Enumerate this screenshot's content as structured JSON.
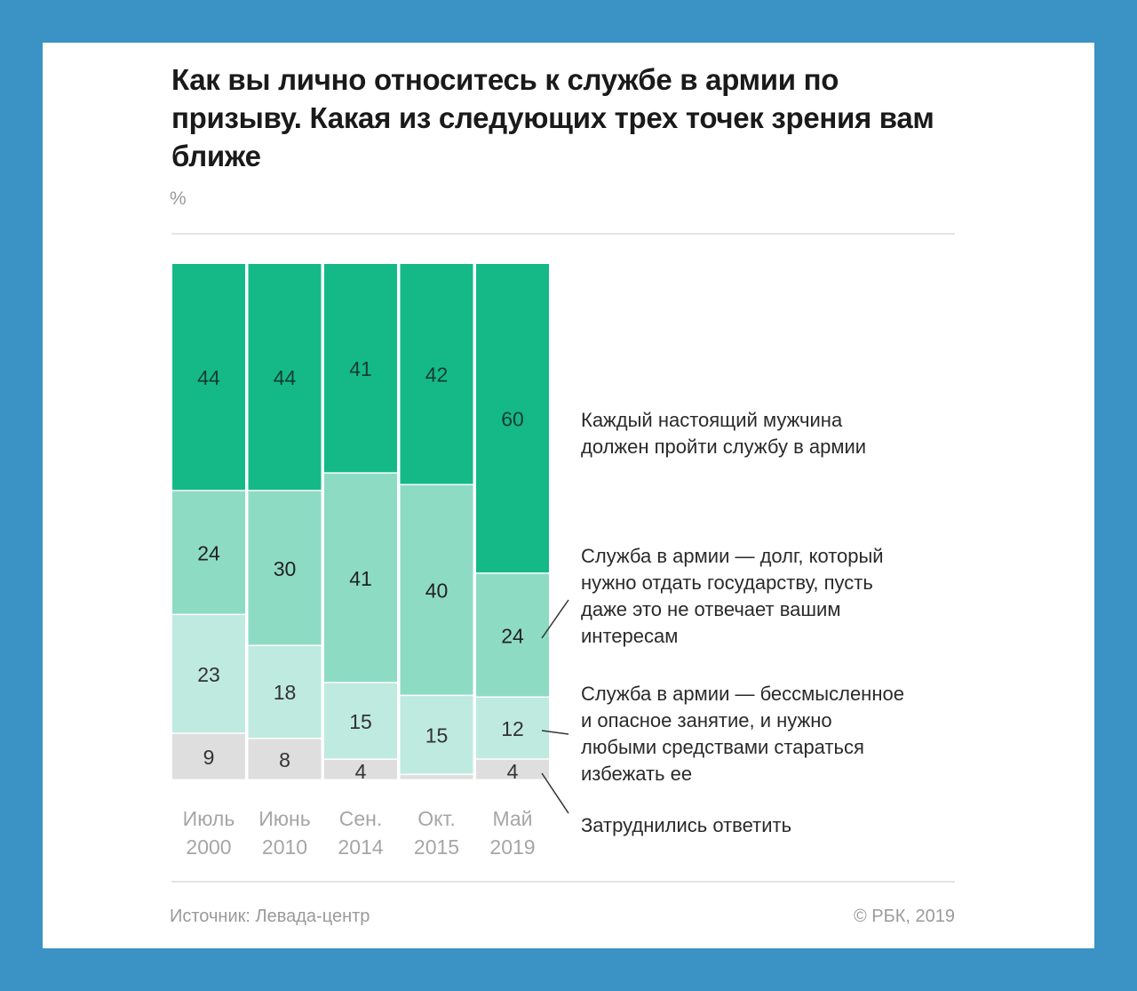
{
  "chart_data": {
    "type": "bar",
    "stacked": true,
    "title": "Как вы лично относитесь к службе в армии по призыву. Какая из следующих трех точек зрения вам ближе",
    "unit": "%",
    "categories": [
      {
        "month": "Июль",
        "year": "2000"
      },
      {
        "month": "Июнь",
        "year": "2010"
      },
      {
        "month": "Сен.",
        "year": "2014"
      },
      {
        "month": "Окт.",
        "year": "2015"
      },
      {
        "month": "Май",
        "year": "2019"
      }
    ],
    "series": [
      {
        "name": "Затруднились ответить",
        "values": [
          9,
          8,
          4,
          1,
          4
        ],
        "labels": [
          "9",
          "8",
          "4",
          "",
          "4"
        ],
        "color": "#dedede",
        "text_color": "#333333"
      },
      {
        "name": "Служба в армии — бессмысленное и опасное занятие, и нужно любыми средствами стараться избежать ее",
        "values": [
          23,
          18,
          15,
          15,
          12
        ],
        "labels": [
          "23",
          "18",
          "15",
          "15",
          "12"
        ],
        "color": "#bfeadf",
        "text_color": "#333333"
      },
      {
        "name": "Служба в армии — долг, который нужно отдать государству, пусть даже это не отвечает вашим интересам",
        "values": [
          24,
          30,
          41,
          40,
          24
        ],
        "labels": [
          "24",
          "30",
          "41",
          "40",
          "24"
        ],
        "color": "#8edbc4",
        "text_color": "#222222"
      },
      {
        "name": "Каждый настоящий мужчина должен пройти службу в армии",
        "values": [
          44,
          44,
          41,
          42,
          60
        ],
        "labels": [
          "44",
          "44",
          "41",
          "42",
          "60"
        ],
        "color": "#15b988",
        "text_color": "#123d30"
      }
    ],
    "legend": {
      "placement": "right",
      "entries": [
        {
          "lines": [
            "Каждый настоящий мужчина",
            "должен пройти службу в армии"
          ]
        },
        {
          "lines": [
            "Служба в армии — долг, который",
            "нужно отдать государству, пусть",
            "даже это не отвечает вашим",
            "интересам"
          ]
        },
        {
          "lines": [
            "Служба в армии — бессмысленное",
            "и опасное занятие, и нужно",
            "любыми средствами стараться",
            "избежать ее"
          ]
        },
        {
          "lines": [
            "Затруднились ответить"
          ]
        }
      ]
    }
  },
  "footer": {
    "source": "Источник: Левада-центр",
    "copyright": "© РБК, 2019"
  }
}
